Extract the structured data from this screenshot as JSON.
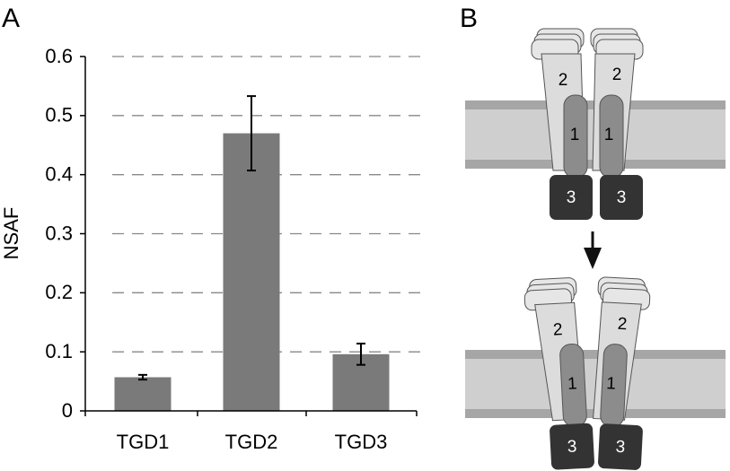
{
  "chart_data": {
    "type": "bar",
    "panel_label": "A",
    "y_label": "NSAF",
    "categories": [
      "TGD1",
      "TGD2",
      "TGD3"
    ],
    "values": [
      0.057,
      0.47,
      0.096
    ],
    "errors": [
      0.004,
      0.063,
      0.018
    ],
    "color": "#7a7a7a",
    "ylim": [
      0,
      0.6
    ],
    "yticks": [
      0,
      0.1,
      0.2,
      0.3,
      0.4,
      0.5,
      0.6
    ],
    "grid": true
  },
  "diagram": {
    "panel_label": "B",
    "top": {
      "labels": [
        "2",
        "2",
        "1",
        "1",
        "3",
        "3"
      ]
    },
    "bottom": {
      "labels": [
        "2",
        "2",
        "1",
        "1",
        "3",
        "3"
      ]
    }
  }
}
